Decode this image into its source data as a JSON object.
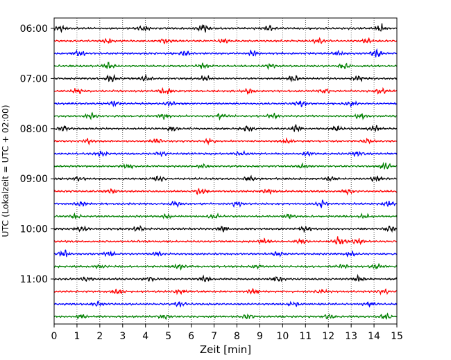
{
  "chart_data": {
    "type": "line",
    "title": "",
    "xlabel": "Zeit  [min]",
    "ylabel": "UTC (Lokalzeit = UTC + 02:00)",
    "xlim": [
      0,
      15
    ],
    "x_ticks": [
      0,
      1,
      2,
      3,
      4,
      5,
      6,
      7,
      8,
      9,
      10,
      11,
      12,
      13,
      14,
      15
    ],
    "y_tick_labels": [
      "06:00",
      "07:00",
      "08:00",
      "09:00",
      "10:00",
      "11:00"
    ],
    "trace_interval_min": 15,
    "start_time": "06:00",
    "trace_colors": [
      "#000000",
      "#ff0000",
      "#0000ff",
      "#008000"
    ],
    "grid": {
      "vertical_dotted": true
    },
    "series": [
      {
        "start": "06:00",
        "color": "#000000",
        "bursts": [
          [
            0.3,
            1.2
          ],
          [
            3.9,
            1.3
          ],
          [
            6.5,
            2.2
          ],
          [
            9.4,
            1.0
          ],
          [
            14.3,
            1.6
          ]
        ]
      },
      {
        "start": "06:15",
        "color": "#ff0000",
        "bursts": [
          [
            2.3,
            1.0
          ],
          [
            4.9,
            1.1
          ],
          [
            7.4,
            1.0
          ],
          [
            11.6,
            1.0
          ],
          [
            13.7,
            1.1
          ]
        ]
      },
      {
        "start": "06:30",
        "color": "#0000ff",
        "bursts": [
          [
            1.1,
            1.2
          ],
          [
            5.7,
            1.1
          ],
          [
            8.7,
            1.0
          ],
          [
            12.4,
            1.0
          ],
          [
            14.1,
            2.0
          ]
        ]
      },
      {
        "start": "06:45",
        "color": "#008000",
        "bursts": [
          [
            2.4,
            1.3
          ],
          [
            6.5,
            1.3
          ],
          [
            9.5,
            1.0
          ],
          [
            12.7,
            1.0
          ]
        ]
      },
      {
        "start": "07:00",
        "color": "#000000",
        "bursts": [
          [
            2.5,
            1.4
          ],
          [
            4.0,
            1.0
          ],
          [
            6.6,
            1.1
          ],
          [
            10.5,
            1.2
          ],
          [
            13.3,
            1.1
          ]
        ]
      },
      {
        "start": "07:15",
        "color": "#ff0000",
        "bursts": [
          [
            1.0,
            1.0
          ],
          [
            4.9,
            1.4
          ],
          [
            8.5,
            1.3
          ],
          [
            11.8,
            1.0
          ],
          [
            14.3,
            1.0
          ]
        ]
      },
      {
        "start": "07:30",
        "color": "#0000ff",
        "bursts": [
          [
            2.6,
            1.0
          ],
          [
            5.1,
            1.0
          ],
          [
            10.8,
            1.2
          ],
          [
            13.0,
            1.0
          ]
        ]
      },
      {
        "start": "07:45",
        "color": "#008000",
        "bursts": [
          [
            1.6,
            1.0
          ],
          [
            4.8,
            1.1
          ],
          [
            7.3,
            1.0
          ],
          [
            9.6,
            1.0
          ],
          [
            13.4,
            1.1
          ]
        ]
      },
      {
        "start": "08:00",
        "color": "#000000",
        "bursts": [
          [
            0.4,
            1.0
          ],
          [
            5.2,
            1.1
          ],
          [
            8.5,
            1.2
          ],
          [
            10.6,
            1.6
          ],
          [
            12.4,
            1.2
          ],
          [
            14.0,
            1.3
          ]
        ]
      },
      {
        "start": "08:15",
        "color": "#ff0000",
        "bursts": [
          [
            1.5,
            1.0
          ],
          [
            4.5,
            1.0
          ],
          [
            6.8,
            1.0
          ],
          [
            10.2,
            1.0
          ],
          [
            13.7,
            1.1
          ]
        ]
      },
      {
        "start": "08:30",
        "color": "#0000ff",
        "bursts": [
          [
            2.1,
            1.1
          ],
          [
            4.7,
            1.0
          ],
          [
            8.2,
            1.0
          ],
          [
            11.1,
            1.0
          ],
          [
            13.3,
            1.0
          ]
        ]
      },
      {
        "start": "08:45",
        "color": "#008000",
        "bursts": [
          [
            3.2,
            1.1
          ],
          [
            6.5,
            1.0
          ],
          [
            10.9,
            1.0
          ],
          [
            14.5,
            1.4
          ]
        ]
      },
      {
        "start": "09:00",
        "color": "#000000",
        "bursts": [
          [
            1.1,
            1.0
          ],
          [
            4.6,
            1.2
          ],
          [
            8.6,
            1.0
          ],
          [
            12.1,
            1.0
          ],
          [
            14.1,
            1.0
          ]
        ]
      },
      {
        "start": "09:15",
        "color": "#ff0000",
        "bursts": [
          [
            2.5,
            1.0
          ],
          [
            6.4,
            1.4
          ],
          [
            9.4,
            1.0
          ],
          [
            12.9,
            1.0
          ]
        ]
      },
      {
        "start": "09:30",
        "color": "#0000ff",
        "bursts": [
          [
            1.2,
            1.0
          ],
          [
            5.3,
            1.0
          ],
          [
            8.0,
            1.0
          ],
          [
            11.7,
            1.5
          ],
          [
            14.6,
            1.2
          ]
        ]
      },
      {
        "start": "09:45",
        "color": "#008000",
        "bursts": [
          [
            0.9,
            1.0
          ],
          [
            4.9,
            1.0
          ],
          [
            7.0,
            1.1
          ],
          [
            10.3,
            1.0
          ],
          [
            13.6,
            1.0
          ]
        ]
      },
      {
        "start": "10:00",
        "color": "#000000",
        "bursts": [
          [
            1.2,
            1.0
          ],
          [
            3.7,
            1.1
          ],
          [
            7.4,
            1.0
          ],
          [
            11.0,
            1.0
          ],
          [
            14.7,
            1.3
          ]
        ]
      },
      {
        "start": "10:15",
        "color": "#ff0000",
        "bursts": [
          [
            9.2,
            1.0
          ],
          [
            12.5,
            2.0
          ],
          [
            13.3,
            1.5
          ],
          [
            10.8,
            1.0
          ]
        ]
      },
      {
        "start": "10:30",
        "color": "#0000ff",
        "bursts": [
          [
            0.4,
            1.6
          ],
          [
            2.4,
            1.3
          ],
          [
            4.5,
            1.0
          ],
          [
            9.8,
            1.0
          ],
          [
            13.0,
            1.0
          ]
        ]
      },
      {
        "start": "10:45",
        "color": "#008000",
        "bursts": [
          [
            2.0,
            1.0
          ],
          [
            5.5,
            1.0
          ],
          [
            8.9,
            1.0
          ],
          [
            12.6,
            1.0
          ],
          [
            14.1,
            1.1
          ]
        ]
      },
      {
        "start": "11:00",
        "color": "#000000",
        "bursts": [
          [
            1.4,
            1.0
          ],
          [
            4.2,
            1.0
          ],
          [
            6.6,
            1.3
          ],
          [
            9.8,
            1.0
          ],
          [
            13.3,
            1.1
          ]
        ]
      },
      {
        "start": "11:15",
        "color": "#ff0000",
        "bursts": [
          [
            2.8,
            1.4
          ],
          [
            5.5,
            1.0
          ],
          [
            8.7,
            1.2
          ],
          [
            11.7,
            1.0
          ],
          [
            14.4,
            1.0
          ]
        ]
      },
      {
        "start": "11:30",
        "color": "#0000ff",
        "bursts": [
          [
            1.9,
            1.0
          ],
          [
            5.5,
            1.0
          ],
          [
            10.5,
            1.1
          ],
          [
            13.8,
            1.0
          ]
        ]
      },
      {
        "start": "11:45",
        "color": "#008000",
        "bursts": [
          [
            1.2,
            1.0
          ],
          [
            4.8,
            1.0
          ],
          [
            8.5,
            1.0
          ],
          [
            12.0,
            1.0
          ],
          [
            14.5,
            1.1
          ]
        ]
      }
    ]
  }
}
